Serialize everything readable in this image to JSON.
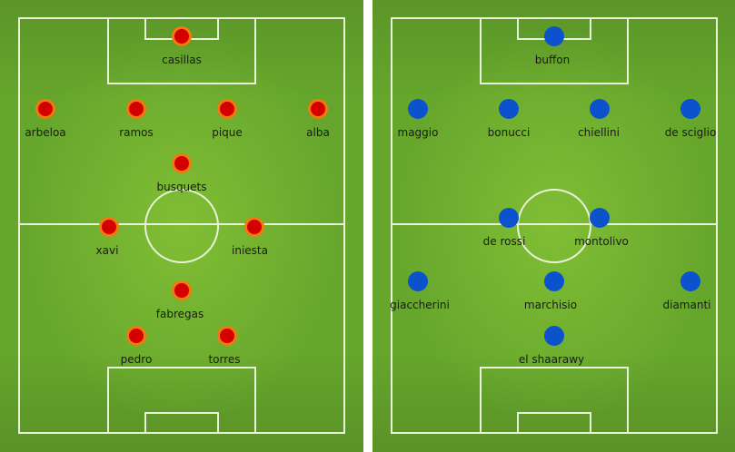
{
  "teams": [
    {
      "side": "left",
      "dot_color": "#d40000",
      "ring_color": "#f07a10",
      "players": [
        {
          "name": "casillas"
        },
        {
          "name": "arbeloa"
        },
        {
          "name": "ramos"
        },
        {
          "name": "pique"
        },
        {
          "name": "alba"
        },
        {
          "name": "busquets"
        },
        {
          "name": "xavi"
        },
        {
          "name": "iniesta"
        },
        {
          "name": "fabregas"
        },
        {
          "name": "pedro"
        },
        {
          "name": "torres"
        }
      ]
    },
    {
      "side": "right",
      "dot_color": "#0b52cc",
      "players": [
        {
          "name": "buffon"
        },
        {
          "name": "maggio"
        },
        {
          "name": "bonucci"
        },
        {
          "name": "chiellini"
        },
        {
          "name": "de sciglio"
        },
        {
          "name": "de rossi"
        },
        {
          "name": "montolivo"
        },
        {
          "name": "giaccherini"
        },
        {
          "name": "marchisio"
        },
        {
          "name": "diamanti"
        },
        {
          "name": "el shaarawy"
        }
      ]
    }
  ]
}
